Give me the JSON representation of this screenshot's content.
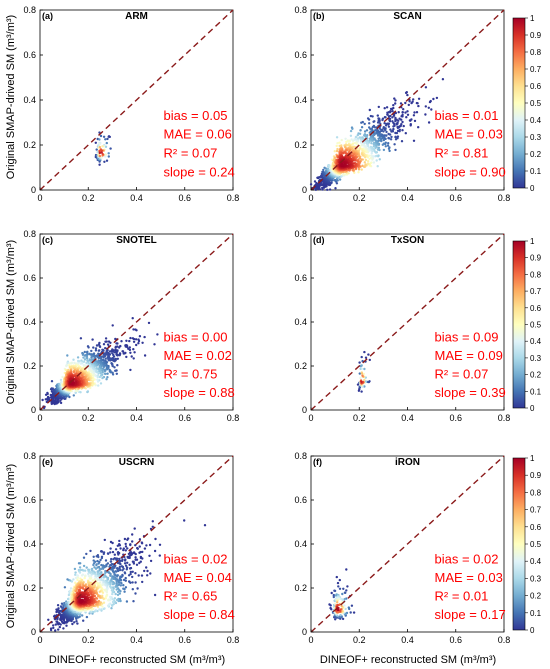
{
  "figure": {
    "ylabel": "Original SMAP-drived SM (m³/m³)",
    "xlabel": "DINEOF+ reconstructed SM (m³/m³)"
  },
  "colorbar": {
    "ticks": [
      "0",
      "0.1",
      "0.2",
      "0.3",
      "0.4",
      "0.5",
      "0.6",
      "0.7",
      "0.8",
      "0.9",
      "1"
    ],
    "colors": [
      "#313695",
      "#4575b4",
      "#74add1",
      "#abd9e9",
      "#e0f3f8",
      "#ffffbf",
      "#fee090",
      "#fdae61",
      "#f46d43",
      "#d73027",
      "#a50026"
    ]
  },
  "colors": {
    "stats": "#ff0000",
    "one_to_one": "#8b1a1a",
    "axis": "#000000"
  },
  "chart_data": [
    {
      "type": "scatter",
      "panel": "(a)",
      "title": "ARM",
      "xlim": [
        0,
        0.8
      ],
      "ylim": [
        0,
        0.8
      ],
      "xticks": [
        "0",
        "0.2",
        "0.4",
        "0.6",
        "0.8"
      ],
      "yticks": [
        "0",
        "0.2",
        "0.4",
        "0.6",
        "0.8"
      ],
      "stats": [
        "bias = 0.05",
        "MAE = 0.06",
        "R² = 0.07",
        "slope = 0.24"
      ],
      "cluster": {
        "center": [
          0.25,
          0.16
        ],
        "spread": [
          0.02,
          0.04
        ],
        "n": 70,
        "corr": 0.1
      }
    },
    {
      "type": "scatter",
      "panel": "(b)",
      "title": "SCAN",
      "xlim": [
        0,
        0.8
      ],
      "ylim": [
        0,
        0.8
      ],
      "xticks": [
        "0",
        "0.2",
        "0.4",
        "0.6",
        "0.8"
      ],
      "yticks": [
        "0",
        "0.2",
        "0.4",
        "0.6",
        "0.8"
      ],
      "stats": [
        "bias = 0.01",
        "MAE = 0.03",
        "R² = 0.81",
        "slope = 0.90"
      ],
      "cluster": {
        "center": [
          0.13,
          0.11
        ],
        "spread": [
          0.11,
          0.1
        ],
        "n": 1500,
        "corr": 0.9
      }
    },
    {
      "type": "scatter",
      "panel": "(c)",
      "title": "SNOTEL",
      "xlim": [
        0,
        0.8
      ],
      "ylim": [
        0,
        0.8
      ],
      "xticks": [
        "0",
        "0.2",
        "0.4",
        "0.6",
        "0.8"
      ],
      "yticks": [
        "0",
        "0.2",
        "0.4",
        "0.6",
        "0.8"
      ],
      "stats": [
        "bias = 0.00",
        "MAE = 0.02",
        "R² = 0.75",
        "slope = 0.88"
      ],
      "cluster": {
        "center": [
          0.13,
          0.12
        ],
        "spread": [
          0.09,
          0.08
        ],
        "n": 1500,
        "corr": 0.86
      }
    },
    {
      "type": "scatter",
      "panel": "(d)",
      "title": "TxSON",
      "xlim": [
        0,
        0.8
      ],
      "ylim": [
        0,
        0.8
      ],
      "xticks": [
        "0",
        "0.2",
        "0.4",
        "0.6",
        "0.8"
      ],
      "yticks": [
        "0",
        "0.2",
        "0.4",
        "0.6",
        "0.8"
      ],
      "stats": [
        "bias = 0.09",
        "MAE = 0.09",
        "R² = 0.07",
        "slope = 0.39"
      ],
      "cluster": {
        "center": [
          0.21,
          0.13
        ],
        "spread": [
          0.012,
          0.045
        ],
        "n": 60,
        "corr": 0.2
      }
    },
    {
      "type": "scatter",
      "panel": "(e)",
      "title": "USCRN",
      "xlim": [
        0,
        0.8
      ],
      "ylim": [
        0,
        0.8
      ],
      "xticks": [
        "0",
        "0.2",
        "0.4",
        "0.6",
        "0.8"
      ],
      "yticks": [
        "0",
        "0.2",
        "0.4",
        "0.6",
        "0.8"
      ],
      "stats": [
        "bias = 0.02",
        "MAE = 0.04",
        "R² = 0.65",
        "slope = 0.84"
      ],
      "cluster": {
        "center": [
          0.17,
          0.14
        ],
        "spread": [
          0.1,
          0.1
        ],
        "n": 1600,
        "corr": 0.8
      }
    },
    {
      "type": "scatter",
      "panel": "(f)",
      "title": "iRON",
      "xlim": [
        0,
        0.8
      ],
      "ylim": [
        0,
        0.8
      ],
      "xticks": [
        "0",
        "0.2",
        "0.4",
        "0.6",
        "0.8"
      ],
      "yticks": [
        "0",
        "0.2",
        "0.4",
        "0.6",
        "0.8"
      ],
      "stats": [
        "bias = 0.02",
        "MAE = 0.03",
        "R² = 0.01",
        "slope = 0.17"
      ],
      "cluster": {
        "center": [
          0.11,
          0.1
        ],
        "spread": [
          0.025,
          0.045
        ],
        "n": 130,
        "corr": 0.1
      }
    }
  ]
}
